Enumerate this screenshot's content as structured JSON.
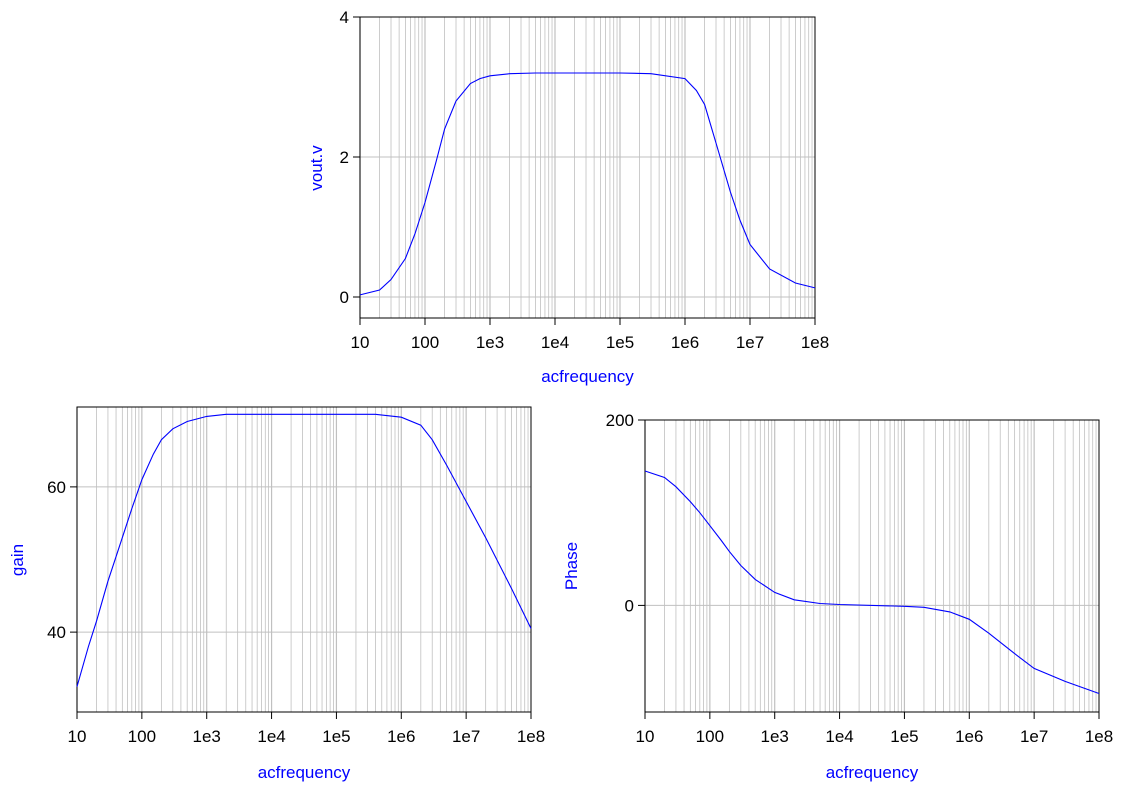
{
  "colors": {
    "series": "#0000ff",
    "grid": "#c0c0c0",
    "axis": "#000000",
    "label": "#0000ff"
  },
  "chart_data": [
    {
      "name": "vout",
      "type": "line",
      "xlabel": "acfrequency",
      "ylabel": "vout.v",
      "xscale": "log",
      "xlim": [
        10,
        100000000
      ],
      "ylim": [
        -0.3,
        4
      ],
      "grid": true,
      "xtick_values": [
        10,
        100,
        1000,
        10000,
        100000,
        1000000,
        10000000,
        100000000
      ],
      "xtick_labels": [
        "10",
        "100",
        "1e3",
        "1e4",
        "1e5",
        "1e6",
        "1e7",
        "1e8"
      ],
      "ytick_values": [
        0,
        2,
        4
      ],
      "ytick_labels": [
        "0",
        "2",
        "4"
      ],
      "series": [
        {
          "x": [
            10,
            20,
            30,
            50,
            70,
            100,
            150,
            200,
            300,
            500,
            700,
            1000,
            2000,
            5000,
            10000,
            100000,
            300000,
            1000000,
            1500000,
            2000000,
            3000000,
            5000000,
            7000000,
            10000000,
            20000000,
            50000000,
            100000000
          ],
          "y": [
            0.03,
            0.1,
            0.25,
            0.55,
            0.9,
            1.35,
            1.95,
            2.4,
            2.8,
            3.05,
            3.12,
            3.16,
            3.19,
            3.2,
            3.2,
            3.2,
            3.19,
            3.12,
            2.95,
            2.75,
            2.2,
            1.5,
            1.1,
            0.75,
            0.4,
            0.2,
            0.13
          ]
        }
      ]
    },
    {
      "name": "gain",
      "type": "line",
      "xlabel": "acfrequency",
      "ylabel": "gain",
      "xscale": "log",
      "xlim": [
        10,
        100000000
      ],
      "ylim": [
        29,
        71
      ],
      "grid": true,
      "xtick_values": [
        10,
        100,
        1000,
        10000,
        100000,
        1000000,
        10000000,
        100000000
      ],
      "xtick_labels": [
        "10",
        "100",
        "1e3",
        "1e4",
        "1e5",
        "1e6",
        "1e7",
        "1e8"
      ],
      "ytick_values": [
        40,
        60
      ],
      "ytick_labels": [
        "40",
        "60"
      ],
      "series": [
        {
          "x": [
            10,
            15,
            20,
            30,
            50,
            70,
            100,
            150,
            200,
            300,
            500,
            1000,
            2000,
            10000,
            100000,
            400000,
            1000000,
            2000000,
            3000000,
            5000000,
            10000000,
            20000000,
            50000000,
            100000000
          ],
          "y": [
            32.5,
            38,
            41.5,
            47,
            53,
            57,
            61,
            64.5,
            66.5,
            68,
            69,
            69.7,
            70,
            70,
            70,
            70,
            69.6,
            68.5,
            66.5,
            63,
            58,
            53,
            46,
            40.5
          ]
        }
      ]
    },
    {
      "name": "phase",
      "type": "line",
      "xlabel": "acfrequency",
      "ylabel": "Phase",
      "xscale": "log",
      "xlim": [
        10,
        100000000
      ],
      "ylim": [
        -115,
        200
      ],
      "grid": true,
      "xtick_values": [
        10,
        100,
        1000,
        10000,
        100000,
        1000000,
        10000000,
        100000000
      ],
      "xtick_labels": [
        "10",
        "100",
        "1e3",
        "1e4",
        "1e5",
        "1e6",
        "1e7",
        "1e8"
      ],
      "ytick_values": [
        0,
        200
      ],
      "ytick_labels": [
        "0",
        "200"
      ],
      "series": [
        {
          "x": [
            10,
            20,
            30,
            50,
            70,
            100,
            150,
            200,
            300,
            500,
            1000,
            2000,
            5000,
            10000,
            100000,
            200000,
            500000,
            1000000,
            2000000,
            5000000,
            10000000,
            30000000,
            100000000
          ],
          "y": [
            145,
            138,
            128,
            112,
            100,
            86,
            70,
            58,
            43,
            28,
            14,
            6,
            2,
            1,
            -1,
            -2,
            -7,
            -15,
            -30,
            -52,
            -68,
            -82,
            -95
          ]
        }
      ]
    }
  ]
}
